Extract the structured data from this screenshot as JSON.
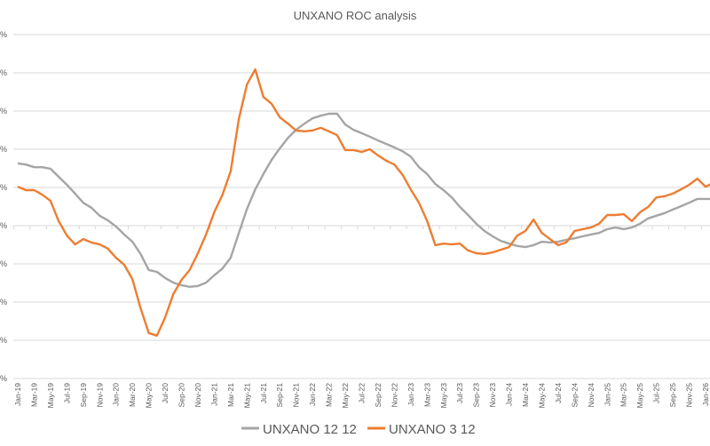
{
  "chart_data": {
    "type": "line",
    "title": "UNXANO ROC analysis",
    "xlabel": "",
    "ylabel": "",
    "y_tick_labels_visible": [
      "%",
      "%",
      "%",
      "%",
      "%",
      "%",
      "%",
      "%",
      "%",
      "%"
    ],
    "ylim": [
      -40,
      50
    ],
    "grid": true,
    "legend_position": "bottom",
    "x_tick_labels": [
      "Jan-19",
      "Mar-19",
      "May-19",
      "Jul-19",
      "Sep-19",
      "Nov-19",
      "Jan-20",
      "Mar-20",
      "May-20",
      "Jul-20",
      "Sep-20",
      "Nov-20",
      "Jan-21",
      "Mar-21",
      "May-21",
      "Jul-21",
      "Sep-21",
      "Nov-21",
      "Jan-22",
      "Mar-22",
      "May-22",
      "Jul-22",
      "Sep-22",
      "Nov-22",
      "Jan-23",
      "Mar-23",
      "May-23",
      "Jul-23",
      "Sep-23",
      "Nov-23",
      "Jan-24",
      "Mar-24",
      "May-24",
      "Jul-24",
      "Sep-24",
      "Nov-24",
      "Jan-25",
      "Mar-25",
      "May-25",
      "Jul-25",
      "Sep-25",
      "Nov-25",
      "Jan-26"
    ],
    "x": [
      "Jan-19",
      "Feb-19",
      "Mar-19",
      "Apr-19",
      "May-19",
      "Jun-19",
      "Jul-19",
      "Aug-19",
      "Sep-19",
      "Oct-19",
      "Nov-19",
      "Dec-19",
      "Jan-20",
      "Feb-20",
      "Mar-20",
      "Apr-20",
      "May-20",
      "Jun-20",
      "Jul-20",
      "Aug-20",
      "Sep-20",
      "Oct-20",
      "Nov-20",
      "Dec-20",
      "Jan-21",
      "Feb-21",
      "Mar-21",
      "Apr-21",
      "May-21",
      "Jun-21",
      "Jul-21",
      "Aug-21",
      "Sep-21",
      "Oct-21",
      "Nov-21",
      "Dec-21",
      "Jan-22",
      "Feb-22",
      "Mar-22",
      "Apr-22",
      "May-22",
      "Jun-22",
      "Jul-22",
      "Aug-22",
      "Sep-22",
      "Oct-22",
      "Nov-22",
      "Dec-22",
      "Jan-23",
      "Feb-23",
      "Mar-23",
      "Apr-23",
      "May-23",
      "Jun-23",
      "Jul-23",
      "Aug-23",
      "Sep-23",
      "Oct-23",
      "Nov-23",
      "Dec-23",
      "Jan-24",
      "Feb-24",
      "Mar-24",
      "Apr-24",
      "May-24",
      "Jun-24",
      "Jul-24",
      "Aug-24",
      "Sep-24",
      "Oct-24",
      "Nov-24",
      "Dec-24",
      "Jan-25",
      "Feb-25",
      "Mar-25",
      "Apr-25",
      "May-25",
      "Jun-25",
      "Jul-25",
      "Aug-25",
      "Sep-25",
      "Oct-25",
      "Nov-25",
      "Dec-25",
      "Jan-26",
      "Feb-26"
    ],
    "series": [
      {
        "name": "UNXANO 12 12",
        "color": "#A5A5A5",
        "values": [
          16.3,
          16.0,
          15.3,
          15.3,
          14.9,
          12.8,
          10.7,
          8.4,
          6.0,
          4.7,
          2.6,
          1.4,
          -0.2,
          -2.3,
          -4.2,
          -7.4,
          -11.6,
          -12.1,
          -13.7,
          -14.9,
          -15.6,
          -16.0,
          -15.8,
          -14.9,
          -13.0,
          -11.2,
          -8.4,
          -1.9,
          4.4,
          9.5,
          13.5,
          17.2,
          20.2,
          23.0,
          25.1,
          26.7,
          28.1,
          28.8,
          29.3,
          29.3,
          26.5,
          25.1,
          24.2,
          23.3,
          22.3,
          21.4,
          20.5,
          19.5,
          18.1,
          15.3,
          13.5,
          10.9,
          9.3,
          7.4,
          4.9,
          2.8,
          0.5,
          -1.4,
          -2.8,
          -4.0,
          -4.7,
          -5.3,
          -5.6,
          -5.1,
          -4.2,
          -4.4,
          -4.2,
          -3.7,
          -3.3,
          -2.8,
          -2.3,
          -1.9,
          -0.9,
          -0.5,
          -0.9,
          -0.5,
          0.5,
          1.9,
          2.6,
          3.3,
          4.2,
          5.1,
          6.0,
          7.0,
          7.0,
          7.0
        ]
      },
      {
        "name": "UNXANO 3 12",
        "color": "#ED7D31",
        "values": [
          10.2,
          9.3,
          9.3,
          8.1,
          6.5,
          1.2,
          -2.6,
          -4.9,
          -3.5,
          -4.4,
          -4.9,
          -6.0,
          -8.4,
          -10.2,
          -14.0,
          -21.6,
          -28.1,
          -28.8,
          -24.0,
          -17.9,
          -14.2,
          -11.6,
          -7.2,
          -2.3,
          3.5,
          8.1,
          14.2,
          27.9,
          37.0,
          40.9,
          33.7,
          31.9,
          28.4,
          26.7,
          24.9,
          24.7,
          24.9,
          25.6,
          24.7,
          23.7,
          19.8,
          19.8,
          19.3,
          20.0,
          18.4,
          17.0,
          16.0,
          13.3,
          9.5,
          6.0,
          1.2,
          -5.1,
          -4.7,
          -4.9,
          -4.7,
          -6.5,
          -7.2,
          -7.4,
          -7.0,
          -6.3,
          -5.6,
          -2.6,
          -1.4,
          1.6,
          -1.9,
          -3.5,
          -5.1,
          -4.4,
          -1.4,
          -0.9,
          -0.5,
          0.5,
          2.8,
          2.8,
          3.0,
          1.2,
          3.5,
          4.9,
          7.4,
          7.7,
          8.4,
          9.5,
          10.7,
          12.3,
          10.2,
          11.2
        ]
      }
    ]
  }
}
